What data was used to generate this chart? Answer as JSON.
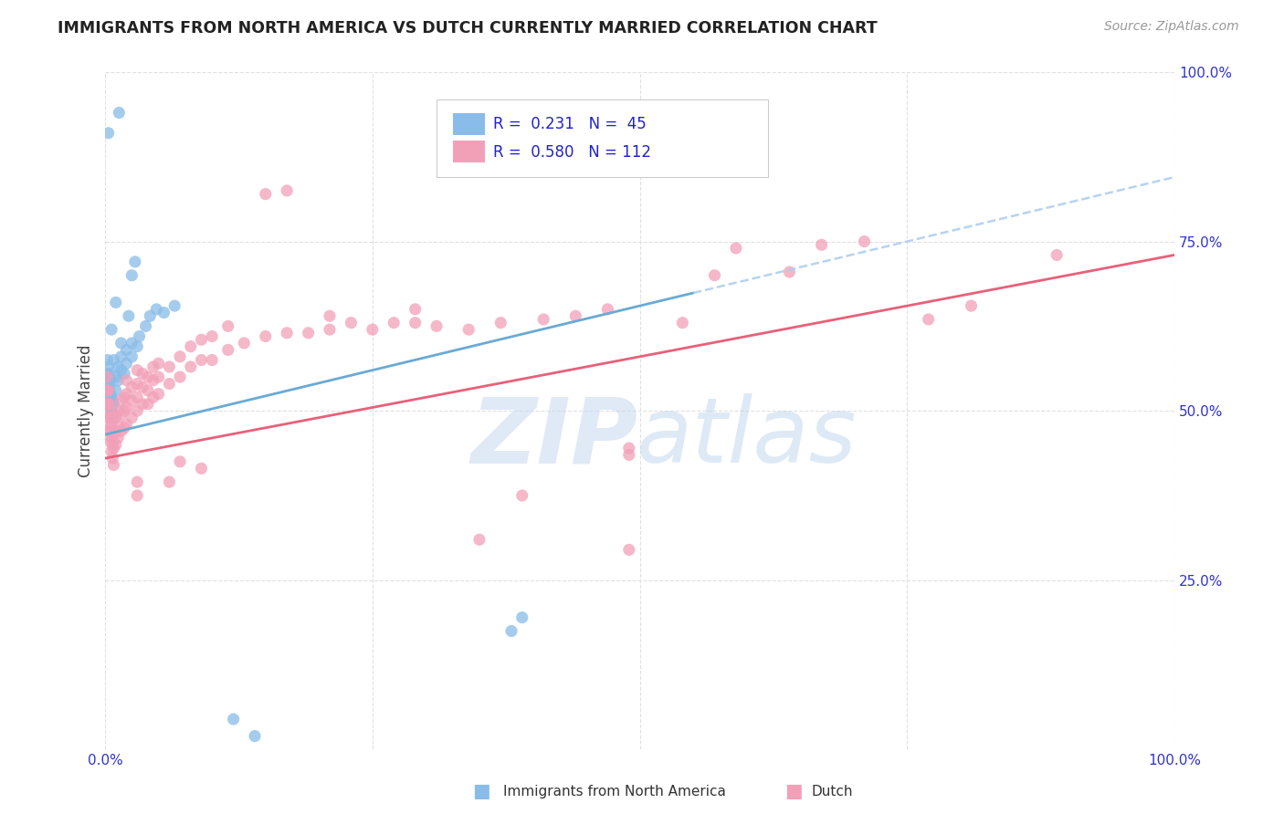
{
  "title": "IMMIGRANTS FROM NORTH AMERICA VS DUTCH CURRENTLY MARRIED CORRELATION CHART",
  "source": "Source: ZipAtlas.com",
  "ylabel": "Currently Married",
  "ylabel_right_labels": [
    "100.0%",
    "75.0%",
    "50.0%",
    "25.0%"
  ],
  "ylabel_right_positions": [
    1.0,
    0.75,
    0.5,
    0.25
  ],
  "color_blue": "#89BCE8",
  "color_pink": "#F2A0B8",
  "color_blue_line": "#6AAAD4",
  "color_pink_line": "#E8607A",
  "watermark_zip": "ZIP",
  "watermark_atlas": "atlas",
  "watermark_color_zip": "#C8D8F0",
  "watermark_color_atlas": "#A8C8E8",
  "xlim": [
    0.0,
    1.0
  ],
  "ylim": [
    0.0,
    1.0
  ],
  "blue_scatter": [
    [
      0.002,
      0.535
    ],
    [
      0.002,
      0.555
    ],
    [
      0.002,
      0.575
    ],
    [
      0.003,
      0.525
    ],
    [
      0.003,
      0.545
    ],
    [
      0.003,
      0.565
    ],
    [
      0.004,
      0.515
    ],
    [
      0.004,
      0.535
    ],
    [
      0.004,
      0.555
    ],
    [
      0.005,
      0.505
    ],
    [
      0.005,
      0.525
    ],
    [
      0.005,
      0.545
    ],
    [
      0.006,
      0.5
    ],
    [
      0.006,
      0.52
    ],
    [
      0.007,
      0.495
    ],
    [
      0.007,
      0.515
    ],
    [
      0.008,
      0.49
    ],
    [
      0.008,
      0.51
    ],
    [
      0.01,
      0.53
    ],
    [
      0.01,
      0.55
    ],
    [
      0.012,
      0.545
    ],
    [
      0.012,
      0.565
    ],
    [
      0.015,
      0.56
    ],
    [
      0.015,
      0.58
    ],
    [
      0.018,
      0.555
    ],
    [
      0.02,
      0.57
    ],
    [
      0.02,
      0.59
    ],
    [
      0.025,
      0.58
    ],
    [
      0.025,
      0.6
    ],
    [
      0.03,
      0.595
    ],
    [
      0.032,
      0.61
    ],
    [
      0.038,
      0.625
    ],
    [
      0.042,
      0.64
    ],
    [
      0.048,
      0.65
    ],
    [
      0.055,
      0.645
    ],
    [
      0.065,
      0.655
    ],
    [
      0.01,
      0.66
    ],
    [
      0.022,
      0.64
    ],
    [
      0.015,
      0.6
    ],
    [
      0.008,
      0.575
    ],
    [
      0.025,
      0.7
    ],
    [
      0.028,
      0.72
    ],
    [
      0.006,
      0.62
    ],
    [
      0.003,
      0.91
    ],
    [
      0.013,
      0.94
    ],
    [
      0.38,
      0.175
    ],
    [
      0.39,
      0.195
    ],
    [
      0.12,
      0.045
    ],
    [
      0.14,
      0.02
    ]
  ],
  "pink_scatter": [
    [
      0.002,
      0.51
    ],
    [
      0.002,
      0.53
    ],
    [
      0.002,
      0.55
    ],
    [
      0.003,
      0.49
    ],
    [
      0.003,
      0.51
    ],
    [
      0.003,
      0.53
    ],
    [
      0.004,
      0.47
    ],
    [
      0.004,
      0.49
    ],
    [
      0.004,
      0.51
    ],
    [
      0.005,
      0.455
    ],
    [
      0.005,
      0.475
    ],
    [
      0.005,
      0.495
    ],
    [
      0.006,
      0.44
    ],
    [
      0.006,
      0.46
    ],
    [
      0.006,
      0.48
    ],
    [
      0.007,
      0.43
    ],
    [
      0.007,
      0.45
    ],
    [
      0.007,
      0.47
    ],
    [
      0.008,
      0.42
    ],
    [
      0.008,
      0.445
    ],
    [
      0.008,
      0.465
    ],
    [
      0.01,
      0.45
    ],
    [
      0.01,
      0.47
    ],
    [
      0.01,
      0.49
    ],
    [
      0.012,
      0.46
    ],
    [
      0.012,
      0.48
    ],
    [
      0.012,
      0.5
    ],
    [
      0.015,
      0.47
    ],
    [
      0.015,
      0.495
    ],
    [
      0.015,
      0.515
    ],
    [
      0.018,
      0.475
    ],
    [
      0.018,
      0.5
    ],
    [
      0.018,
      0.52
    ],
    [
      0.02,
      0.48
    ],
    [
      0.02,
      0.505
    ],
    [
      0.02,
      0.525
    ],
    [
      0.02,
      0.545
    ],
    [
      0.025,
      0.49
    ],
    [
      0.025,
      0.515
    ],
    [
      0.025,
      0.535
    ],
    [
      0.03,
      0.5
    ],
    [
      0.03,
      0.52
    ],
    [
      0.03,
      0.54
    ],
    [
      0.03,
      0.56
    ],
    [
      0.035,
      0.51
    ],
    [
      0.035,
      0.535
    ],
    [
      0.035,
      0.555
    ],
    [
      0.04,
      0.51
    ],
    [
      0.04,
      0.53
    ],
    [
      0.04,
      0.55
    ],
    [
      0.045,
      0.52
    ],
    [
      0.045,
      0.545
    ],
    [
      0.045,
      0.565
    ],
    [
      0.05,
      0.525
    ],
    [
      0.05,
      0.55
    ],
    [
      0.05,
      0.57
    ],
    [
      0.06,
      0.54
    ],
    [
      0.06,
      0.565
    ],
    [
      0.07,
      0.55
    ],
    [
      0.07,
      0.58
    ],
    [
      0.08,
      0.565
    ],
    [
      0.08,
      0.595
    ],
    [
      0.09,
      0.575
    ],
    [
      0.09,
      0.605
    ],
    [
      0.1,
      0.575
    ],
    [
      0.1,
      0.61
    ],
    [
      0.115,
      0.59
    ],
    [
      0.115,
      0.625
    ],
    [
      0.13,
      0.6
    ],
    [
      0.15,
      0.61
    ],
    [
      0.15,
      0.82
    ],
    [
      0.17,
      0.615
    ],
    [
      0.17,
      0.825
    ],
    [
      0.19,
      0.615
    ],
    [
      0.21,
      0.62
    ],
    [
      0.21,
      0.64
    ],
    [
      0.23,
      0.63
    ],
    [
      0.25,
      0.62
    ],
    [
      0.27,
      0.63
    ],
    [
      0.29,
      0.63
    ],
    [
      0.29,
      0.65
    ],
    [
      0.31,
      0.625
    ],
    [
      0.34,
      0.62
    ],
    [
      0.37,
      0.63
    ],
    [
      0.39,
      0.375
    ],
    [
      0.41,
      0.635
    ],
    [
      0.44,
      0.64
    ],
    [
      0.47,
      0.65
    ],
    [
      0.49,
      0.435
    ],
    [
      0.54,
      0.63
    ],
    [
      0.57,
      0.7
    ],
    [
      0.59,
      0.74
    ],
    [
      0.64,
      0.705
    ],
    [
      0.67,
      0.745
    ],
    [
      0.71,
      0.75
    ],
    [
      0.77,
      0.635
    ],
    [
      0.81,
      0.655
    ],
    [
      0.89,
      0.73
    ],
    [
      0.03,
      0.375
    ],
    [
      0.03,
      0.395
    ],
    [
      0.06,
      0.395
    ],
    [
      0.07,
      0.425
    ],
    [
      0.09,
      0.415
    ],
    [
      0.35,
      0.31
    ],
    [
      0.49,
      0.295
    ],
    [
      0.49,
      0.445
    ]
  ]
}
